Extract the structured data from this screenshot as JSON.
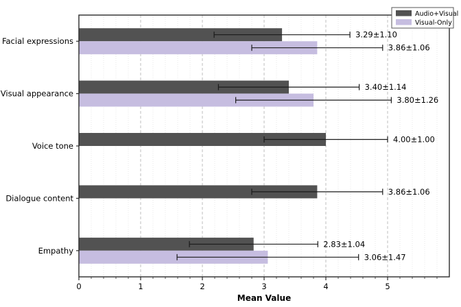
{
  "chart_data": {
    "type": "bar",
    "orientation": "horizontal",
    "title": "",
    "xlabel": "Mean Value",
    "ylabel": "",
    "xlim": [
      0,
      6
    ],
    "xticks": [
      0,
      1,
      2,
      3,
      4,
      5
    ],
    "xtick_labels": [
      "0",
      "1",
      "2",
      "3",
      "4",
      "5"
    ],
    "minor_tick_step": 0.2,
    "grid": "both-vertical",
    "legend_position": "upper-right",
    "categories": [
      "Facial expressions",
      "Visual appearance",
      "Voice tone",
      "Dialogue content",
      "Empathy"
    ],
    "series": [
      {
        "name": "Audio+Visual",
        "color": "#525252",
        "means": [
          3.29,
          3.4,
          4.0,
          3.86,
          2.83
        ],
        "stds": [
          1.1,
          1.14,
          1.0,
          1.06,
          1.04
        ],
        "annotations": [
          "3.29±1.10",
          "3.40±1.14",
          "4.00±1.00",
          "3.86±1.06",
          "2.83±1.04"
        ]
      },
      {
        "name": "Visual-Only",
        "color": "#c6bde0",
        "means": [
          3.86,
          3.8,
          null,
          null,
          3.06
        ],
        "stds": [
          1.06,
          1.26,
          null,
          null,
          1.47
        ],
        "annotations": [
          "3.86±1.06",
          "3.80±1.26",
          null,
          null,
          "3.06±1.47"
        ]
      }
    ],
    "colors": {
      "audio_visual_bar": "#525252",
      "visual_only_bar": "#c6bde0",
      "errorbar": "#1a1a1a",
      "spine": "#2b2b2b",
      "major_grid": "#b8b8b8",
      "minor_grid": "#e2e2e2"
    }
  }
}
